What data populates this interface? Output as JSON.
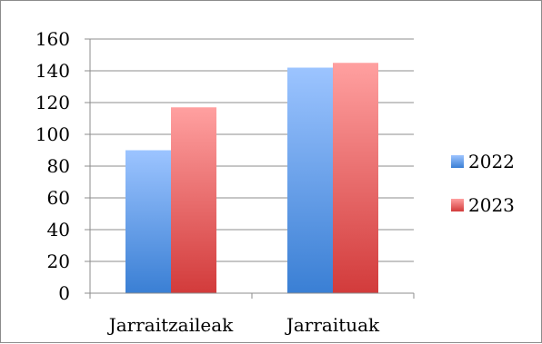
{
  "chart_data": {
    "type": "bar",
    "categories": [
      "Jarraitzaileak",
      "Jarraituak"
    ],
    "series": [
      {
        "name": "2022",
        "values": [
          90,
          142
        ],
        "color_top": "#9cc4ff",
        "color_bottom": "#3a7fd4"
      },
      {
        "name": "2023",
        "values": [
          117,
          145
        ],
        "color_top": "#ffa0a0",
        "color_bottom": "#d23b3b"
      }
    ],
    "title": "",
    "xlabel": "",
    "ylabel": "",
    "ylim": [
      0,
      160
    ],
    "yticks": [
      0,
      20,
      40,
      60,
      80,
      100,
      120,
      140,
      160
    ],
    "grid": true,
    "legend": "right"
  }
}
